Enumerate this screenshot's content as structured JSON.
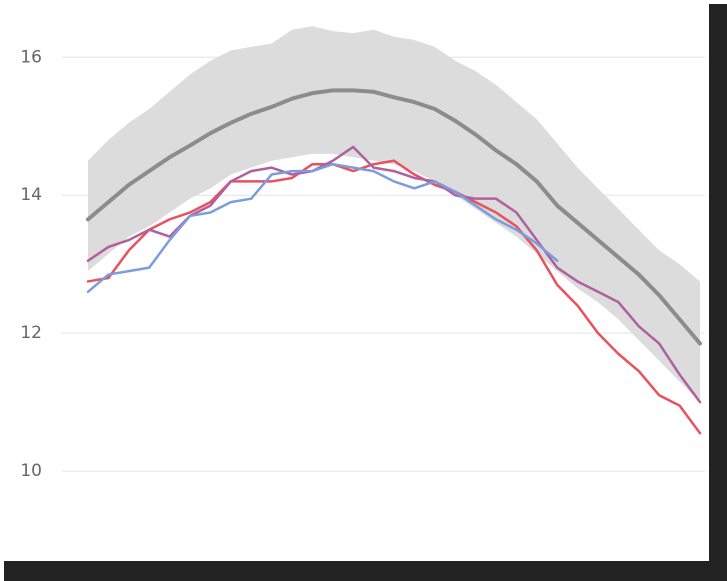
{
  "chart_data": {
    "type": "line",
    "x": [
      0,
      1,
      2,
      3,
      4,
      5,
      6,
      7,
      8,
      9,
      10,
      11,
      12,
      13,
      14,
      15,
      16,
      17,
      18,
      19,
      20,
      21,
      22,
      23,
      24,
      25,
      26,
      27,
      28,
      29,
      30
    ],
    "xlim": [
      0,
      30
    ],
    "ylim": [
      8.9,
      16.7
    ],
    "yticks": [
      10,
      12,
      14,
      16
    ],
    "grid": true,
    "band": {
      "color": "#dcdcdc",
      "lower": [
        12.9,
        13.15,
        13.4,
        13.55,
        13.75,
        13.95,
        14.1,
        14.3,
        14.4,
        14.5,
        14.55,
        14.6,
        14.6,
        14.55,
        14.5,
        14.45,
        14.35,
        14.2,
        14.0,
        13.8,
        13.6,
        13.4,
        13.15,
        12.9,
        12.65,
        12.45,
        12.2,
        11.9,
        11.6,
        11.3,
        11.0
      ],
      "upper": [
        14.5,
        14.8,
        15.05,
        15.25,
        15.5,
        15.75,
        15.95,
        16.1,
        16.15,
        16.2,
        16.4,
        16.45,
        16.38,
        16.35,
        16.4,
        16.3,
        16.25,
        16.15,
        15.95,
        15.8,
        15.6,
        15.35,
        15.1,
        14.75,
        14.4,
        14.1,
        13.8,
        13.5,
        13.2,
        13.0,
        12.75
      ]
    },
    "series": [
      {
        "color": "#8c8c8c",
        "width": 4,
        "values": [
          13.65,
          13.9,
          14.15,
          14.35,
          14.55,
          14.72,
          14.9,
          15.05,
          15.18,
          15.28,
          15.4,
          15.48,
          15.52,
          15.52,
          15.5,
          15.42,
          15.35,
          15.25,
          15.08,
          14.88,
          14.65,
          14.45,
          14.2,
          13.85,
          13.6,
          13.35,
          13.1,
          12.85,
          12.55,
          12.2,
          11.85
        ]
      },
      {
        "color": "#e8525f",
        "width": 2.5,
        "values": [
          12.75,
          12.8,
          13.2,
          13.5,
          13.65,
          13.75,
          13.9,
          14.2,
          14.2,
          14.2,
          14.25,
          14.45,
          14.45,
          14.35,
          14.45,
          14.5,
          14.3,
          14.15,
          14.05,
          13.9,
          13.75,
          13.55,
          13.2,
          12.7,
          12.4,
          12.0,
          11.7,
          11.45,
          11.1,
          10.95,
          10.55
        ]
      },
      {
        "color": "#b0609e",
        "width": 2.5,
        "values": [
          13.05,
          13.25,
          13.35,
          13.5,
          13.4,
          13.7,
          13.85,
          14.2,
          14.35,
          14.4,
          14.3,
          14.35,
          14.5,
          14.7,
          14.4,
          14.35,
          14.25,
          14.2,
          14.0,
          13.95,
          13.95,
          13.75,
          13.35,
          12.95,
          12.75,
          12.6,
          12.45,
          12.1,
          11.85,
          11.4,
          11.0
        ]
      },
      {
        "color": "#7a9de0",
        "width": 2.5,
        "values": [
          12.6,
          12.85,
          12.9,
          12.95,
          13.35,
          13.7,
          13.75,
          13.9,
          13.95,
          14.3,
          14.35,
          14.35,
          14.45,
          14.4,
          14.35,
          14.2,
          14.1,
          14.2,
          14.05,
          13.85,
          13.65,
          13.5,
          13.3,
          13.05,
          null,
          null,
          null,
          null,
          null,
          null,
          null
        ]
      }
    ]
  }
}
